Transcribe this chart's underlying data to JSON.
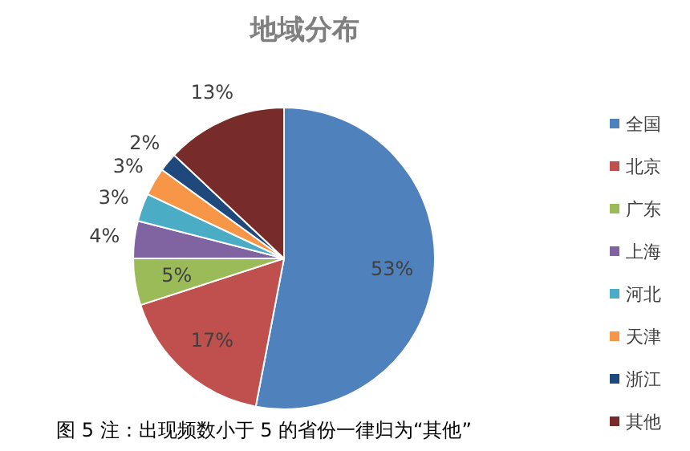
{
  "chart_data": {
    "type": "pie",
    "title": "地域分布",
    "categories": [
      "全国",
      "北京",
      "广东",
      "上海",
      "河北",
      "天津",
      "浙江",
      "其他"
    ],
    "values": [
      53,
      17,
      5,
      4,
      3,
      3,
      2,
      13
    ],
    "value_labels": [
      "53%",
      "17%",
      "5%",
      "4%",
      "3%",
      "3%",
      "2%",
      "13%"
    ],
    "colors": [
      "#4f81bd",
      "#c0504d",
      "#9bbb59",
      "#8064a2",
      "#4bacc6",
      "#f79646",
      "#1f497d",
      "#772c2a"
    ],
    "legend": "right",
    "annotations": [
      "图 5 注：出现频数小于 5 的省份一律归为“其他”"
    ]
  }
}
